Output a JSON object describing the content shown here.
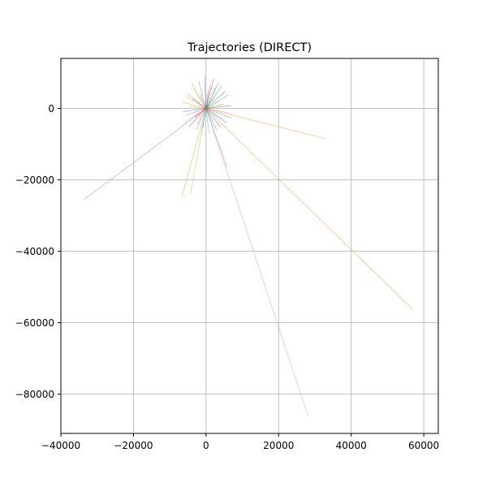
{
  "chart_data": {
    "type": "line",
    "title": "Trajectories (DIRECT)",
    "xlabel": "",
    "ylabel": "",
    "xlim": [
      -40000,
      64000
    ],
    "ylim": [
      -91000,
      14000
    ],
    "grid": true,
    "legend": "none",
    "x_ticks": [
      {
        "value": -40000,
        "label": "−40000"
      },
      {
        "value": -20000,
        "label": "−20000"
      },
      {
        "value": 0,
        "label": "0"
      },
      {
        "value": 20000,
        "label": "20000"
      },
      {
        "value": 40000,
        "label": "40000"
      },
      {
        "value": 60000,
        "label": "60000"
      }
    ],
    "y_ticks": [
      {
        "value": 0,
        "label": "0"
      },
      {
        "value": -20000,
        "label": "−20000"
      },
      {
        "value": -40000,
        "label": "−40000"
      },
      {
        "value": -60000,
        "label": "−60000"
      },
      {
        "value": -80000,
        "label": "−80000"
      }
    ],
    "palette": [
      "#1f77b4",
      "#ff7f0e",
      "#2ca02c",
      "#d62728",
      "#9467bd",
      "#8c564b",
      "#e377c2",
      "#7f7f7f",
      "#bcbd22",
      "#17becf"
    ],
    "series": [
      {
        "color": "#7f7f7f",
        "x": [
          0,
          -33600
        ],
        "y": [
          0,
          -25500
        ]
      },
      {
        "color": "#ff7f0e",
        "x": [
          0,
          56900
        ],
        "y": [
          0,
          -56200
        ]
      },
      {
        "color": "#ff7f0e",
        "x": [
          0,
          33000
        ],
        "y": [
          0,
          -8500
        ]
      },
      {
        "color": "#e377c2",
        "x": [
          0,
          28200
        ],
        "y": [
          0,
          -86300
        ]
      },
      {
        "color": "#ff7f0e",
        "x": [
          0,
          -6700
        ],
        "y": [
          0,
          -25000
        ]
      },
      {
        "color": "#bcbd22",
        "x": [
          0,
          -4300
        ],
        "y": [
          0,
          -24000
        ]
      },
      {
        "color": "#9467bd",
        "x": [
          0,
          5800
        ],
        "y": [
          0,
          -16500
        ]
      },
      {
        "color": "#1f77b4",
        "x": [
          0,
          -400
        ],
        "y": [
          0,
          9200
        ]
      },
      {
        "color": "#9467bd",
        "x": [
          0,
          3500
        ],
        "y": [
          0,
          7300
        ]
      },
      {
        "color": "#bcbd22",
        "x": [
          0,
          -4000
        ],
        "y": [
          0,
          7200
        ]
      },
      {
        "color": "#d62728",
        "x": [
          0,
          2100
        ],
        "y": [
          0,
          8300
        ]
      },
      {
        "color": "#2ca02c",
        "x": [
          0,
          4400
        ],
        "y": [
          0,
          6400
        ]
      },
      {
        "color": "#17becf",
        "x": [
          0,
          6200
        ],
        "y": [
          0,
          3800
        ]
      },
      {
        "color": "#ff7f0e",
        "x": [
          0,
          -5800
        ],
        "y": [
          0,
          3600
        ]
      },
      {
        "color": "#8c564b",
        "x": [
          0,
          7000
        ],
        "y": [
          0,
          800
        ]
      },
      {
        "color": "#1f77b4",
        "x": [
          0,
          -6300
        ],
        "y": [
          0,
          -900
        ]
      },
      {
        "color": "#2ca02c",
        "x": [
          0,
          6800
        ],
        "y": [
          0,
          -2600
        ]
      },
      {
        "color": "#e377c2",
        "x": [
          0,
          -5900
        ],
        "y": [
          0,
          -3900
        ]
      },
      {
        "color": "#d62728",
        "x": [
          0,
          4100
        ],
        "y": [
          0,
          -5300
        ]
      },
      {
        "color": "#9467bd",
        "x": [
          0,
          -2700
        ],
        "y": [
          0,
          -6000
        ]
      },
      {
        "color": "#17becf",
        "x": [
          0,
          800
        ],
        "y": [
          0,
          -6800
        ]
      },
      {
        "color": "#bcbd22",
        "x": [
          0,
          -3500
        ],
        "y": [
          0,
          5600
        ]
      },
      {
        "color": "#1f77b4",
        "x": [
          0,
          5300
        ],
        "y": [
          0,
          4800
        ]
      },
      {
        "color": "#ff7f0e",
        "x": [
          0,
          -6600
        ],
        "y": [
          0,
          1800
        ]
      },
      {
        "color": "#2ca02c",
        "x": [
          0,
          3000
        ],
        "y": [
          0,
          -6200
        ]
      },
      {
        "color": "#d62728",
        "x": [
          0,
          -4700
        ],
        "y": [
          0,
          -5100
        ]
      },
      {
        "color": "#8c564b",
        "x": [
          0,
          1200
        ],
        "y": [
          0,
          6600
        ]
      },
      {
        "color": "#7f7f7f",
        "x": [
          0,
          -2000
        ],
        "y": [
          0,
          7600
        ]
      },
      {
        "color": "#e377c2",
        "x": [
          0,
          6400
        ],
        "y": [
          0,
          -1300
        ]
      },
      {
        "color": "#17becf",
        "x": [
          0,
          -1400
        ],
        "y": [
          0,
          -7400
        ]
      },
      {
        "color": "#1f77b4",
        "x": [
          0,
          5600
        ],
        "y": [
          0,
          -4000
        ]
      },
      {
        "color": "#9467bd",
        "x": [
          0,
          -5200
        ],
        "y": [
          0,
          4300
        ]
      },
      {
        "color": "#2ca02c",
        "x": [
          0,
          2600
        ],
        "y": [
          0,
          5700
        ]
      },
      {
        "color": "#d62728",
        "x": [
          0,
          -3100
        ],
        "y": [
          0,
          -2500
        ]
      },
      {
        "color": "#ff7f0e",
        "x": [
          0,
          3900
        ],
        "y": [
          0,
          2100
        ]
      },
      {
        "color": "#bcbd22",
        "x": [
          0,
          -4900
        ],
        "y": [
          0,
          600
        ]
      },
      {
        "color": "#17becf",
        "x": [
          0,
          1900
        ],
        "y": [
          0,
          -3800
        ]
      },
      {
        "color": "#8c564b",
        "x": [
          0,
          -1700
        ],
        "y": [
          0,
          4100
        ]
      },
      {
        "color": "#e377c2",
        "x": [
          0,
          4600
        ],
        "y": [
          0,
          -2900
        ]
      },
      {
        "color": "#7f7f7f",
        "x": [
          0,
          -3800
        ],
        "y": [
          0,
          2700
        ]
      },
      {
        "color": "#1f77b4",
        "x": [
          0,
          2300
        ],
        "y": [
          0,
          3200
        ]
      },
      {
        "color": "#ff7f0e",
        "x": [
          0,
          -2400
        ],
        "y": [
          0,
          -4400
        ]
      },
      {
        "color": "#2ca02c",
        "x": [
          0,
          4900
        ],
        "y": [
          0,
          1200
        ]
      },
      {
        "color": "#d62728",
        "x": [
          0,
          -5500
        ],
        "y": [
          0,
          -1800
        ]
      },
      {
        "color": "#9467bd",
        "x": [
          0,
          600
        ],
        "y": [
          0,
          5100
        ]
      },
      {
        "color": "#17becf",
        "x": [
          0,
          -900
        ],
        "y": [
          0,
          -5600
        ]
      }
    ]
  }
}
